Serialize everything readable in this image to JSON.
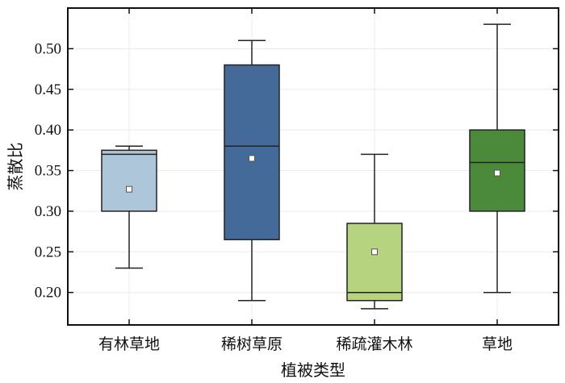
{
  "chart_data": {
    "type": "box",
    "title": "",
    "xlabel": "植被类型",
    "ylabel": "蒸散比",
    "ylim": [
      0.16,
      0.55
    ],
    "yticks": [
      0.2,
      0.25,
      0.3,
      0.35,
      0.4,
      0.45,
      0.5
    ],
    "ytick_labels": [
      "0.20",
      "0.25",
      "0.30",
      "0.35",
      "0.40",
      "0.45",
      "0.50"
    ],
    "grid": true,
    "categories": [
      "有林草地",
      "稀树草原",
      "稀疏灌木林",
      "草地"
    ],
    "boxes": [
      {
        "category": "有林草地",
        "min": 0.23,
        "q1": 0.3,
        "median": 0.37,
        "q3": 0.375,
        "max": 0.38,
        "mean": 0.327,
        "color": "#aec6d9"
      },
      {
        "category": "稀树草原",
        "min": 0.19,
        "q1": 0.265,
        "median": 0.38,
        "q3": 0.48,
        "max": 0.51,
        "mean": 0.365,
        "color": "#446a99"
      },
      {
        "category": "稀疏灌木林",
        "min": 0.18,
        "q1": 0.19,
        "median": 0.2,
        "q3": 0.285,
        "max": 0.37,
        "mean": 0.25,
        "color": "#b6d47f"
      },
      {
        "category": "草地",
        "min": 0.2,
        "q1": 0.3,
        "median": 0.36,
        "q3": 0.4,
        "max": 0.53,
        "mean": 0.347,
        "color": "#4a8a3a"
      }
    ]
  }
}
